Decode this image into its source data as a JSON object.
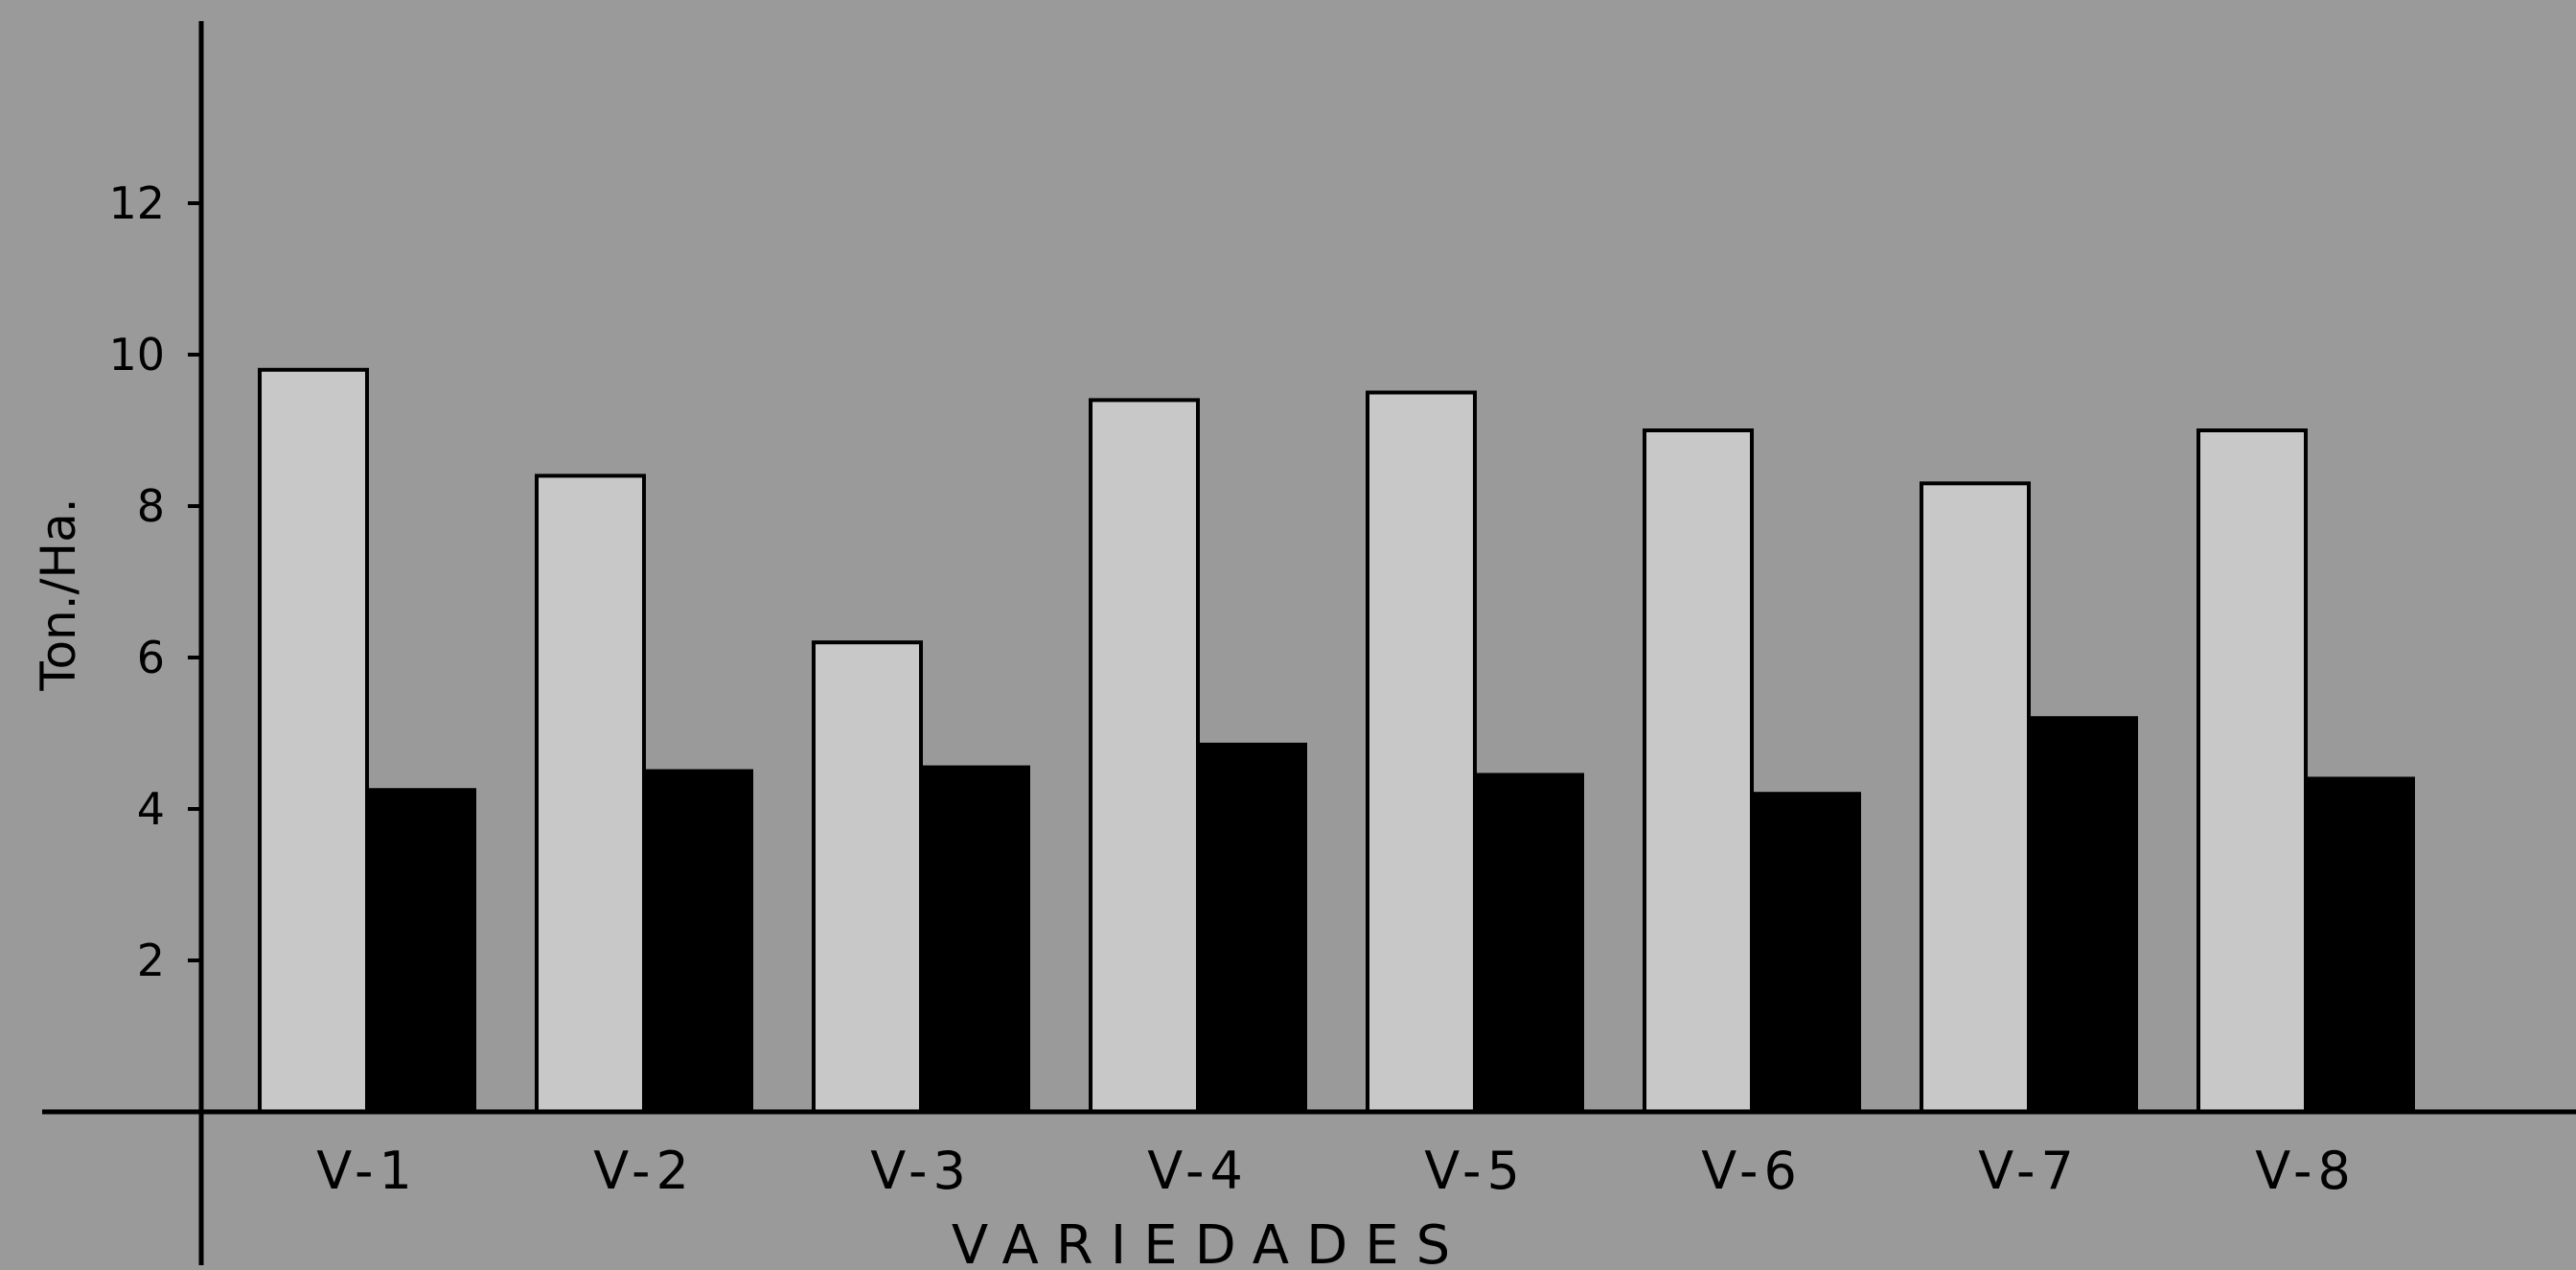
{
  "chart_data": {
    "type": "bar",
    "title": "",
    "xlabel": "VARIEDADES",
    "ylabel": "Ton./Ha.",
    "ylim": [
      0,
      14
    ],
    "yticks": [
      2,
      4,
      6,
      8,
      10,
      12
    ],
    "categories": [
      "V-1",
      "V-2",
      "V-3",
      "V-4",
      "V-5",
      "V-6",
      "V-7",
      "V-8"
    ],
    "series": [
      {
        "values": [
          9.8,
          8.4,
          6.2,
          9.4,
          9.5,
          9.0,
          8.3,
          9.0
        ],
        "color": "#c8c8c8"
      },
      {
        "values": [
          4.25,
          4.5,
          4.55,
          4.85,
          4.45,
          4.2,
          5.2,
          4.4
        ],
        "color": "#000000"
      }
    ],
    "grid": false,
    "legend": "none"
  }
}
